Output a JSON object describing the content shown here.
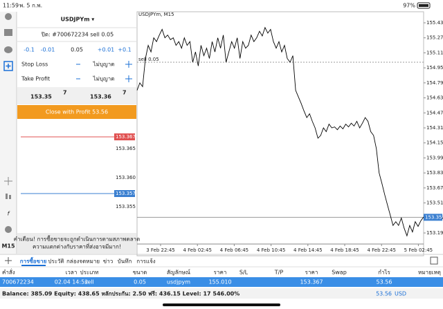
{
  "status_bar": {
    "time": "11:59",
    "date": "พ. 5 ก.พ.",
    "battery": "97%"
  },
  "toolbar": {
    "timeframe": "M15"
  },
  "order_panel": {
    "symbol": "USDJPYm ▾",
    "order": "ปิด: #700672234 sell 0.05",
    "volume_steps": [
      "-0.1",
      "-0.01",
      "0.05",
      "+0.01",
      "+0.1"
    ],
    "stop_loss": {
      "label": "Stop Loss",
      "value": "ไม่บุญาต"
    },
    "take_profit": {
      "label": "Take Profit",
      "value": "ไม่บุญาต"
    },
    "bid": {
      "main": "153.35",
      "sup": "7"
    },
    "ask": {
      "main": "153.36",
      "sup": "7"
    },
    "close_button": "Close with Profit 53.56",
    "depth": [
      "153.367",
      "153.365",
      "153.360",
      "153.357",
      "153.355"
    ],
    "warning": [
      "คำเตือน! การซื้อขายจะถูกดำเนินการตามสภาพตลาด",
      "ความแตกต่างกับราคาที่ส่งอาจมีมาก!"
    ]
  },
  "chart": {
    "type": "line",
    "title": "USDJPYm, M15",
    "color": "#000000",
    "grid": false,
    "values": [
      154.71,
      154.79,
      154.75,
      155.05,
      155.19,
      155.12,
      155.27,
      155.23,
      155.3,
      155.36,
      155.27,
      155.3,
      155.25,
      155.27,
      155.19,
      155.23,
      155.16,
      155.27,
      155.19,
      155.23,
      155.01,
      155.12,
      154.97,
      155.19,
      155.08,
      155.16,
      155.05,
      155.23,
      155.12,
      155.27,
      155.16,
      155.3,
      155.01,
      155.12,
      155.23,
      155.16,
      155.27,
      155.05,
      155.23,
      155.16,
      155.19,
      155.3,
      155.23,
      155.27,
      155.34,
      155.29,
      155.38,
      155.32,
      155.36,
      155.23,
      155.16,
      155.23,
      155.12,
      155.19,
      155.05,
      155.01,
      155.08,
      154.71,
      154.64,
      154.57,
      154.49,
      154.42,
      154.46,
      154.38,
      154.31,
      154.2,
      154.23,
      154.31,
      154.27,
      154.35,
      154.31,
      154.32,
      154.29,
      154.33,
      154.3,
      154.35,
      154.32,
      154.36,
      154.33,
      154.38,
      154.31,
      154.36,
      154.42,
      154.38,
      154.27,
      154.23,
      154.09,
      153.83,
      153.72,
      153.6,
      153.49,
      153.38,
      153.27,
      153.31,
      153.27,
      153.35,
      153.24,
      153.16,
      153.27,
      153.2,
      153.31,
      153.26,
      153.32,
      153.36
    ],
    "ylim": [
      153.072,
      155.548
    ],
    "yticks": [
      {
        "value": 155.43,
        "label": "155.430"
      },
      {
        "value": 155.27,
        "label": "155.270"
      },
      {
        "value": 155.11,
        "label": "155.110"
      },
      {
        "value": 154.95,
        "label": "154.950"
      },
      {
        "value": 154.79,
        "label": "154.790"
      },
      {
        "value": 154.63,
        "label": "154.630"
      },
      {
        "value": 154.47,
        "label": "154.470"
      },
      {
        "value": 154.31,
        "label": "154.310"
      },
      {
        "value": 154.15,
        "label": "154.150"
      },
      {
        "value": 153.99,
        "label": "153.990"
      },
      {
        "value": 153.83,
        "label": "153.830"
      },
      {
        "value": 153.67,
        "label": "153.670"
      },
      {
        "value": 153.51,
        "label": "153.510"
      },
      {
        "value": 153.35,
        "label": "153.350"
      },
      {
        "value": 153.19,
        "label": "153.190"
      }
    ],
    "xlabels": [
      "3 Feb 22:45",
      "4 Feb 02:45",
      "4 Feb 06:45",
      "4 Feb 10:45",
      "4 Feb 14:45",
      "4 Feb 18:45",
      "4 Feb 22:45",
      "5 Feb 02:45"
    ],
    "order_line": {
      "label": "sell 0.05",
      "value": 155.01
    },
    "current_price": 153.357
  },
  "tabs": [
    "การซื้อขาย",
    "ประวัติ",
    "กล่องจดหมาย",
    "ข่าว",
    "บันทึก",
    "การแจ้ง"
  ],
  "table": {
    "headers": [
      "คำสั่ง",
      "เวลา",
      "ประเภท",
      "ขนาด",
      "สัญลักษณ์",
      "ราคา",
      "S/L",
      "T/P",
      "ราคา",
      "Swap",
      "กำไร",
      "หมายเหตุ"
    ],
    "rows": [
      [
        "700672234",
        "02.04 14:52",
        "sell",
        "0.05",
        "usdjpym",
        "155.010",
        null,
        null,
        "153.367",
        null,
        "53.56",
        null
      ]
    ]
  },
  "balance": {
    "text": "Balance: 385.09 Equity: 438.65 หลักประกัน: 2.50 ฟรี: 436.15 Level: 17 546.00%",
    "profit": "53.56",
    "currency": "USD"
  }
}
